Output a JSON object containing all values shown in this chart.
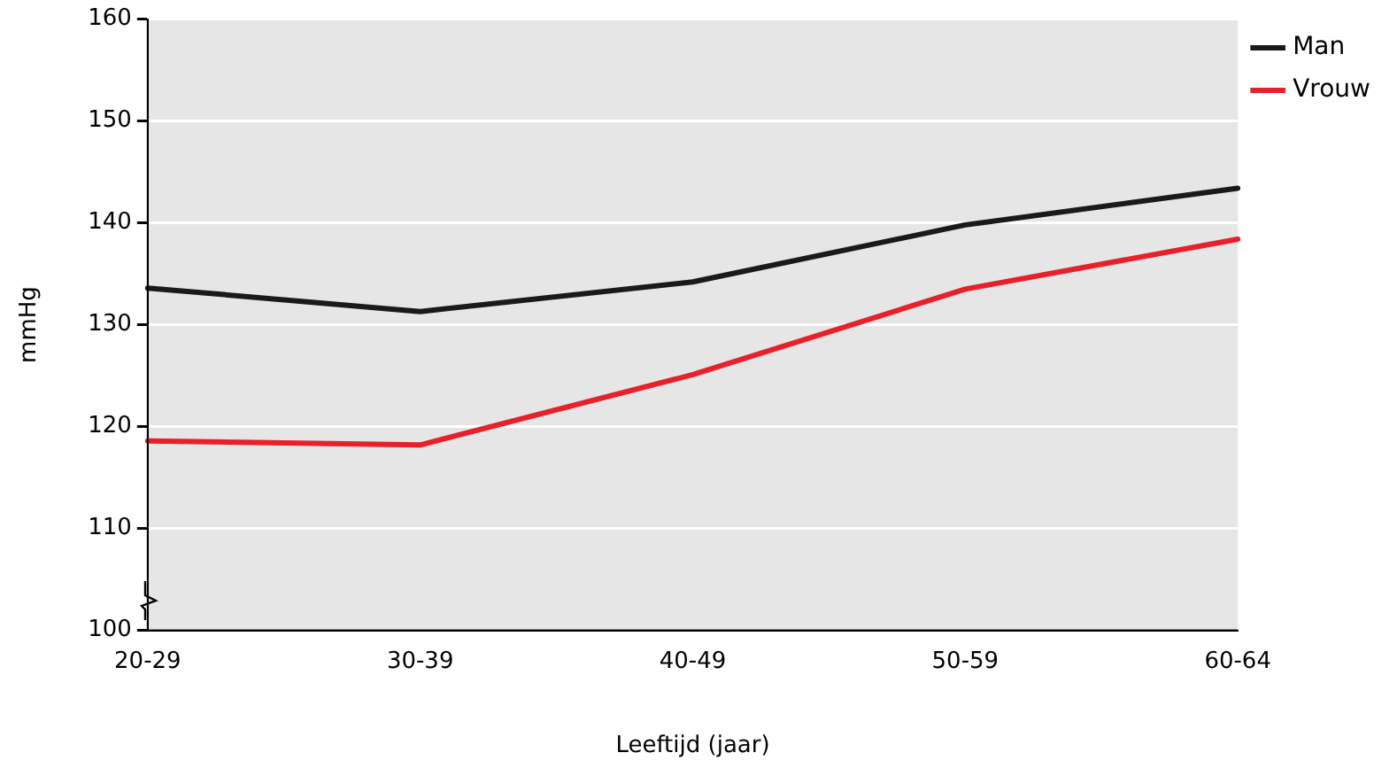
{
  "chart_data": {
    "type": "line",
    "xlabel": "Leeftijd (jaar)",
    "ylabel": "mmHg",
    "categories": [
      "20-29",
      "30-39",
      "40-49",
      "50-59",
      "60-64"
    ],
    "series": [
      {
        "name": "Man",
        "color": "#1a1a1a",
        "values": [
          133.6,
          131.3,
          134.2,
          139.8,
          143.4
        ]
      },
      {
        "name": "Vrouw",
        "color": "#e8202a",
        "values": [
          118.6,
          118.2,
          125.1,
          133.5,
          138.4
        ]
      }
    ],
    "ylim": [
      100,
      160
    ],
    "yticks": [
      100,
      110,
      120,
      130,
      140,
      150,
      160
    ],
    "grid": "y",
    "legend": "top right",
    "marker": "none",
    "line_style": "solid"
  }
}
